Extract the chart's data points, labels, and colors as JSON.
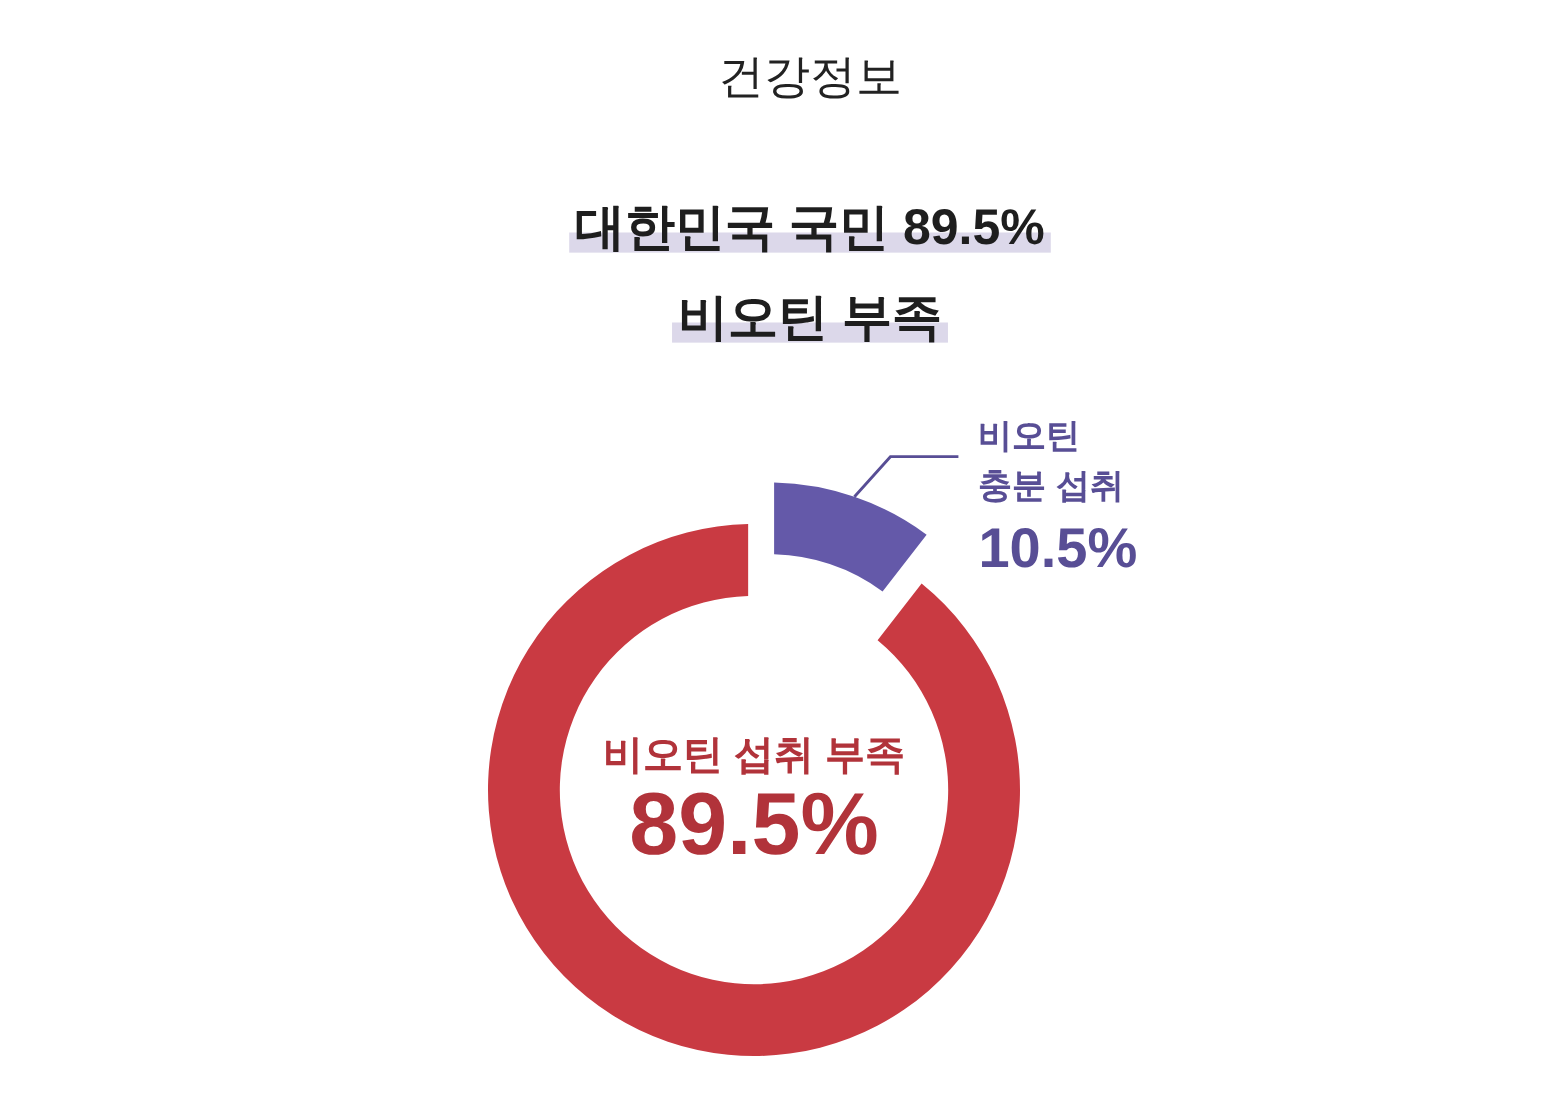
{
  "chart_data": {
    "type": "donut",
    "title": "건강정보",
    "subtitle": "대한민국 국민 89.5%\n비오틴 부족",
    "categories": [
      "비오틴 섭취 부족",
      "비오틴 충분 섭취"
    ],
    "values": [
      89.5,
      10.5
    ],
    "colors": [
      "#c93a42",
      "#6459a9"
    ],
    "value_labels": [
      "89.5%",
      "10.5%"
    ]
  }
}
